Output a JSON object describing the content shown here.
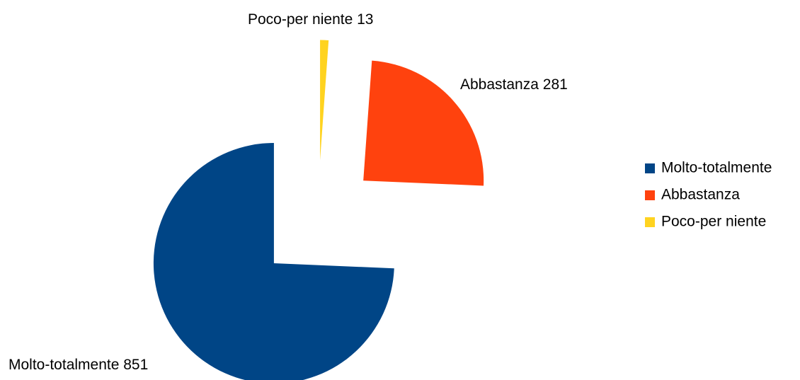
{
  "chart_data": {
    "type": "pie",
    "categories": [
      "Molto-totalmente",
      "Abbastanza",
      "Poco-per niente"
    ],
    "values": [
      851,
      281,
      13
    ],
    "colors": [
      "#004586",
      "#ff420e",
      "#ffd320"
    ],
    "start_angle": 90,
    "direction": "counterclockwise",
    "exploded": true,
    "legend": "right"
  }
}
